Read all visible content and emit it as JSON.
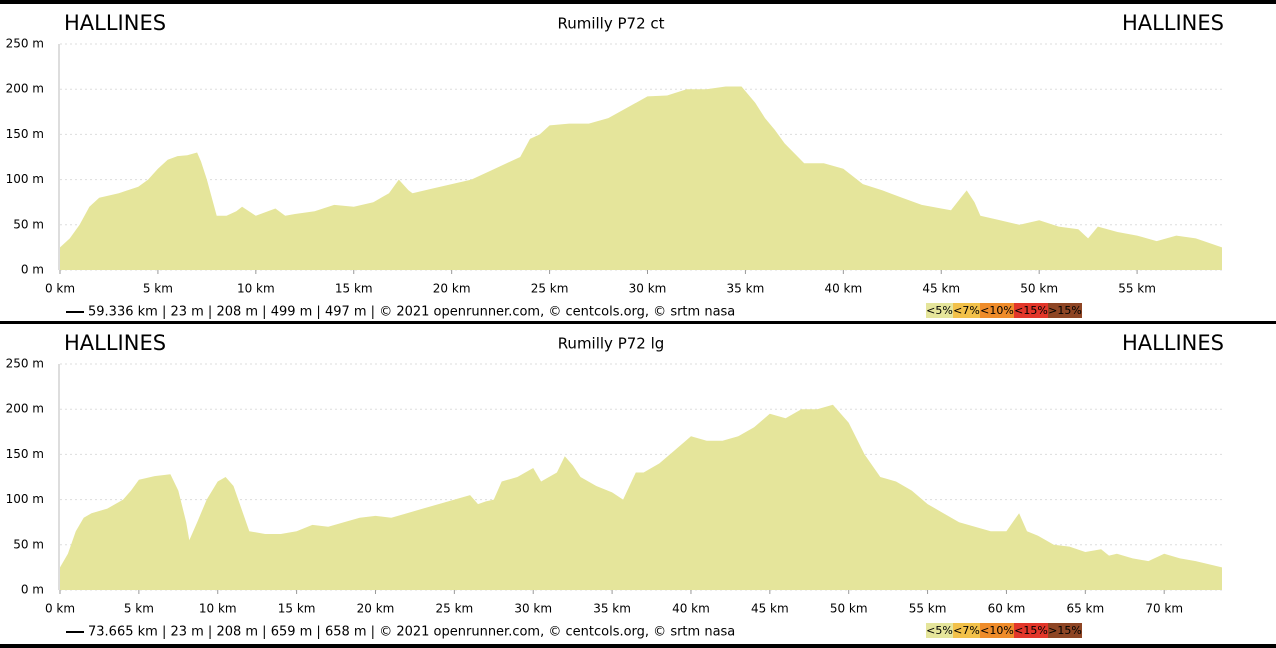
{
  "chart_data": [
    {
      "type": "area",
      "title": "Rumilly P72 ct",
      "start_label": "HALLINES",
      "end_label": "HALLINES",
      "color": "#e5e59b",
      "x": [
        0,
        0.5,
        1,
        1.5,
        2,
        3,
        4,
        4.5,
        5,
        5.5,
        6,
        6.5,
        7,
        7.2,
        7.5,
        8,
        8.5,
        9,
        9.3,
        10,
        11,
        11.5,
        12,
        13,
        14,
        15,
        16,
        16.8,
        17.3,
        17.8,
        18,
        19,
        20,
        21,
        22,
        23,
        23.5,
        24,
        24.5,
        25,
        26,
        27,
        28,
        29,
        30,
        31,
        32,
        33,
        34,
        34.8,
        35.5,
        36,
        36.5,
        37,
        38,
        39,
        40,
        41,
        42,
        43,
        44,
        45,
        45.5,
        46,
        46.3,
        46.7,
        47,
        48,
        49,
        50,
        51,
        52,
        52.5,
        53,
        54,
        55,
        56,
        57,
        58,
        59.336
      ],
      "values": [
        25,
        35,
        50,
        70,
        80,
        85,
        92,
        100,
        112,
        122,
        126,
        127,
        130,
        120,
        100,
        60,
        60,
        65,
        70,
        60,
        68,
        60,
        62,
        65,
        72,
        70,
        75,
        85,
        100,
        88,
        85,
        90,
        95,
        100,
        110,
        120,
        125,
        145,
        150,
        160,
        162,
        162,
        168,
        180,
        192,
        193,
        200,
        200,
        203,
        203,
        185,
        168,
        155,
        140,
        118,
        118,
        112,
        95,
        88,
        80,
        72,
        68,
        66,
        80,
        88,
        75,
        60,
        55,
        50,
        55,
        48,
        45,
        35,
        48,
        42,
        38,
        32,
        38,
        35,
        25
      ],
      "xlim": [
        0,
        59.336
      ],
      "ylim": [
        0,
        250
      ],
      "xticks": [
        {
          "value": 0,
          "label": "0 km"
        },
        {
          "value": 5,
          "label": "5 km"
        },
        {
          "value": 10,
          "label": "10 km"
        },
        {
          "value": 15,
          "label": "15 km"
        },
        {
          "value": 20,
          "label": "20 km"
        },
        {
          "value": 25,
          "label": "25 km"
        },
        {
          "value": 30,
          "label": "30 km"
        },
        {
          "value": 35,
          "label": "35 km"
        },
        {
          "value": 40,
          "label": "40 km"
        },
        {
          "value": 45,
          "label": "45 km"
        },
        {
          "value": 50,
          "label": "50 km"
        },
        {
          "value": 55,
          "label": "55 km"
        }
      ],
      "yticks": [
        {
          "value": 0,
          "label": "0 m"
        },
        {
          "value": 50,
          "label": "50 m"
        },
        {
          "value": 100,
          "label": "100 m"
        },
        {
          "value": 150,
          "label": "150 m"
        },
        {
          "value": 200,
          "label": "200 m"
        },
        {
          "value": 250,
          "label": "250 m"
        }
      ],
      "grid": true,
      "footer": "59.336 km | 23 m | 208 m | 499 m | 497 m | © 2021 openrunner.com, © centcols.org, © srtm nasa",
      "legend": [
        {
          "label": "<5%",
          "color": "#e5e59b"
        },
        {
          "label": "<7%",
          "color": "#f2c14a"
        },
        {
          "label": "<10%",
          "color": "#ef8c2a"
        },
        {
          "label": "<15%",
          "color": "#e2362a"
        },
        {
          "label": ">15%",
          "color": "#8e4524"
        }
      ]
    },
    {
      "type": "area",
      "title": "Rumilly P72 lg",
      "start_label": "HALLINES",
      "end_label": "HALLINES",
      "color": "#e5e59b",
      "x": [
        0,
        0.5,
        1,
        1.5,
        2,
        3,
        4,
        4.5,
        5,
        6,
        7,
        7.5,
        8,
        8.2,
        8.7,
        9.3,
        10,
        10.5,
        11,
        11.5,
        12,
        13,
        14,
        15,
        16,
        17,
        18,
        19,
        20,
        21,
        22,
        23,
        24,
        25,
        26,
        26.5,
        27,
        27.5,
        28,
        29,
        30,
        30.5,
        31,
        31.5,
        32,
        32.5,
        33,
        34,
        35,
        35.7,
        36.5,
        37,
        38,
        39,
        40,
        41,
        42,
        43,
        44,
        45,
        46,
        47,
        48,
        49,
        50,
        51,
        52,
        53,
        54,
        55,
        56,
        57,
        58,
        59,
        60,
        60.8,
        61.3,
        62,
        63,
        64,
        65,
        66,
        66.5,
        67,
        68,
        69,
        70,
        71,
        72,
        73.665
      ],
      "values": [
        25,
        40,
        65,
        80,
        85,
        90,
        100,
        110,
        122,
        126,
        128,
        110,
        75,
        55,
        75,
        100,
        120,
        125,
        115,
        90,
        65,
        62,
        62,
        65,
        72,
        70,
        75,
        80,
        82,
        80,
        85,
        90,
        95,
        100,
        105,
        95,
        98,
        100,
        120,
        125,
        135,
        120,
        125,
        130,
        148,
        138,
        125,
        115,
        108,
        100,
        130,
        130,
        140,
        155,
        170,
        165,
        165,
        170,
        180,
        195,
        190,
        200,
        200,
        205,
        185,
        150,
        125,
        120,
        110,
        95,
        85,
        75,
        70,
        65,
        65,
        85,
        65,
        60,
        50,
        48,
        42,
        45,
        38,
        40,
        35,
        32,
        40,
        35,
        32,
        25
      ],
      "xlim": [
        0,
        73.665
      ],
      "ylim": [
        0,
        250
      ],
      "xticks": [
        {
          "value": 0,
          "label": "0 km"
        },
        {
          "value": 5,
          "label": "5 km"
        },
        {
          "value": 10,
          "label": "10 km"
        },
        {
          "value": 15,
          "label": "15 km"
        },
        {
          "value": 20,
          "label": "20 km"
        },
        {
          "value": 25,
          "label": "25 km"
        },
        {
          "value": 30,
          "label": "30 km"
        },
        {
          "value": 35,
          "label": "35 km"
        },
        {
          "value": 40,
          "label": "40 km"
        },
        {
          "value": 45,
          "label": "45 km"
        },
        {
          "value": 50,
          "label": "50 km"
        },
        {
          "value": 55,
          "label": "55 km"
        },
        {
          "value": 60,
          "label": "60 km"
        },
        {
          "value": 65,
          "label": "65 km"
        },
        {
          "value": 70,
          "label": "70 km"
        }
      ],
      "yticks": [
        {
          "value": 0,
          "label": "0 m"
        },
        {
          "value": 50,
          "label": "50 m"
        },
        {
          "value": 100,
          "label": "100 m"
        },
        {
          "value": 150,
          "label": "150 m"
        },
        {
          "value": 200,
          "label": "200 m"
        },
        {
          "value": 250,
          "label": "250 m"
        }
      ],
      "grid": true,
      "footer": "73.665 km | 23 m | 208 m | 659 m | 658 m | © 2021 openrunner.com, © centcols.org, © srtm nasa",
      "legend": [
        {
          "label": "<5%",
          "color": "#e5e59b"
        },
        {
          "label": "<7%",
          "color": "#f2c14a"
        },
        {
          "label": "<10%",
          "color": "#ef8c2a"
        },
        {
          "label": "<15%",
          "color": "#e2362a"
        },
        {
          "label": ">15%",
          "color": "#8e4524"
        }
      ]
    }
  ]
}
